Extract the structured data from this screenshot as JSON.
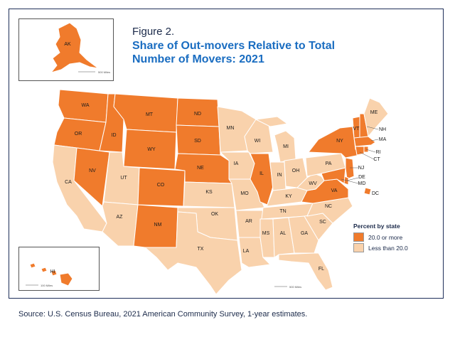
{
  "figure": {
    "label": "Figure 2.",
    "title": "Share of Out-movers Relative to Total Number of Movers: 2021"
  },
  "legend": {
    "title": "Percent by state",
    "items": [
      {
        "label": "20.0 or more",
        "color": "#f07b2c"
      },
      {
        "label": "Less than 20.0",
        "color": "#f9d2ac"
      }
    ]
  },
  "colors": {
    "high": "#f07b2c",
    "low": "#f9d2ac",
    "border": "#ffffff",
    "frame": "#1f2f5a"
  },
  "states_high": [
    "WA",
    "OR",
    "ID",
    "MT",
    "WY",
    "ND",
    "SD",
    "NE",
    "NV",
    "CO",
    "NM",
    "IL",
    "VA",
    "MD",
    "DE",
    "NJ",
    "NY",
    "VT",
    "NH",
    "MA",
    "CT",
    "RI",
    "DC",
    "AK",
    "HI"
  ],
  "states_low": [
    "CA",
    "UT",
    "AZ",
    "KS",
    "OK",
    "TX",
    "MN",
    "IA",
    "MO",
    "AR",
    "LA",
    "WI",
    "MI",
    "IN",
    "OH",
    "KY",
    "TN",
    "MS",
    "AL",
    "GA",
    "FL",
    "SC",
    "NC",
    "WV",
    "PA",
    "ME"
  ],
  "labels": {
    "AK": "AK",
    "HI": "HI",
    "WA": "WA",
    "OR": "OR",
    "ID": "ID",
    "MT": "MT",
    "WY": "WY",
    "ND": "ND",
    "SD": "SD",
    "NE": "NE",
    "NV": "NV",
    "CA": "CA",
    "UT": "UT",
    "AZ": "AZ",
    "CO": "CO",
    "NM": "NM",
    "KS": "KS",
    "OK": "OK",
    "TX": "TX",
    "MN": "MN",
    "IA": "IA",
    "MO": "MO",
    "AR": "AR",
    "LA": "LA",
    "WI": "WI",
    "IL": "IL",
    "MI": "MI",
    "IN": "IN",
    "OH": "OH",
    "KY": "KY",
    "TN": "TN",
    "MS": "MS",
    "AL": "AL",
    "GA": "GA",
    "FL": "FL",
    "SC": "SC",
    "NC": "NC",
    "VA": "VA",
    "WV": "WV",
    "PA": "PA",
    "NY": "NY",
    "VT": "VT",
    "NH": "NH",
    "ME": "ME",
    "MA": "MA",
    "RI": "RI",
    "CT": "CT",
    "NJ": "NJ",
    "DE": "DE",
    "MD": "MD",
    "DC": "DC"
  },
  "scale_bars": {
    "ak": "500 Miles",
    "hi": "100 Miles",
    "main": "500 Miles"
  },
  "source": "Source: U.S. Census Bureau, 2021 American Community Survey, 1-year estimates."
}
